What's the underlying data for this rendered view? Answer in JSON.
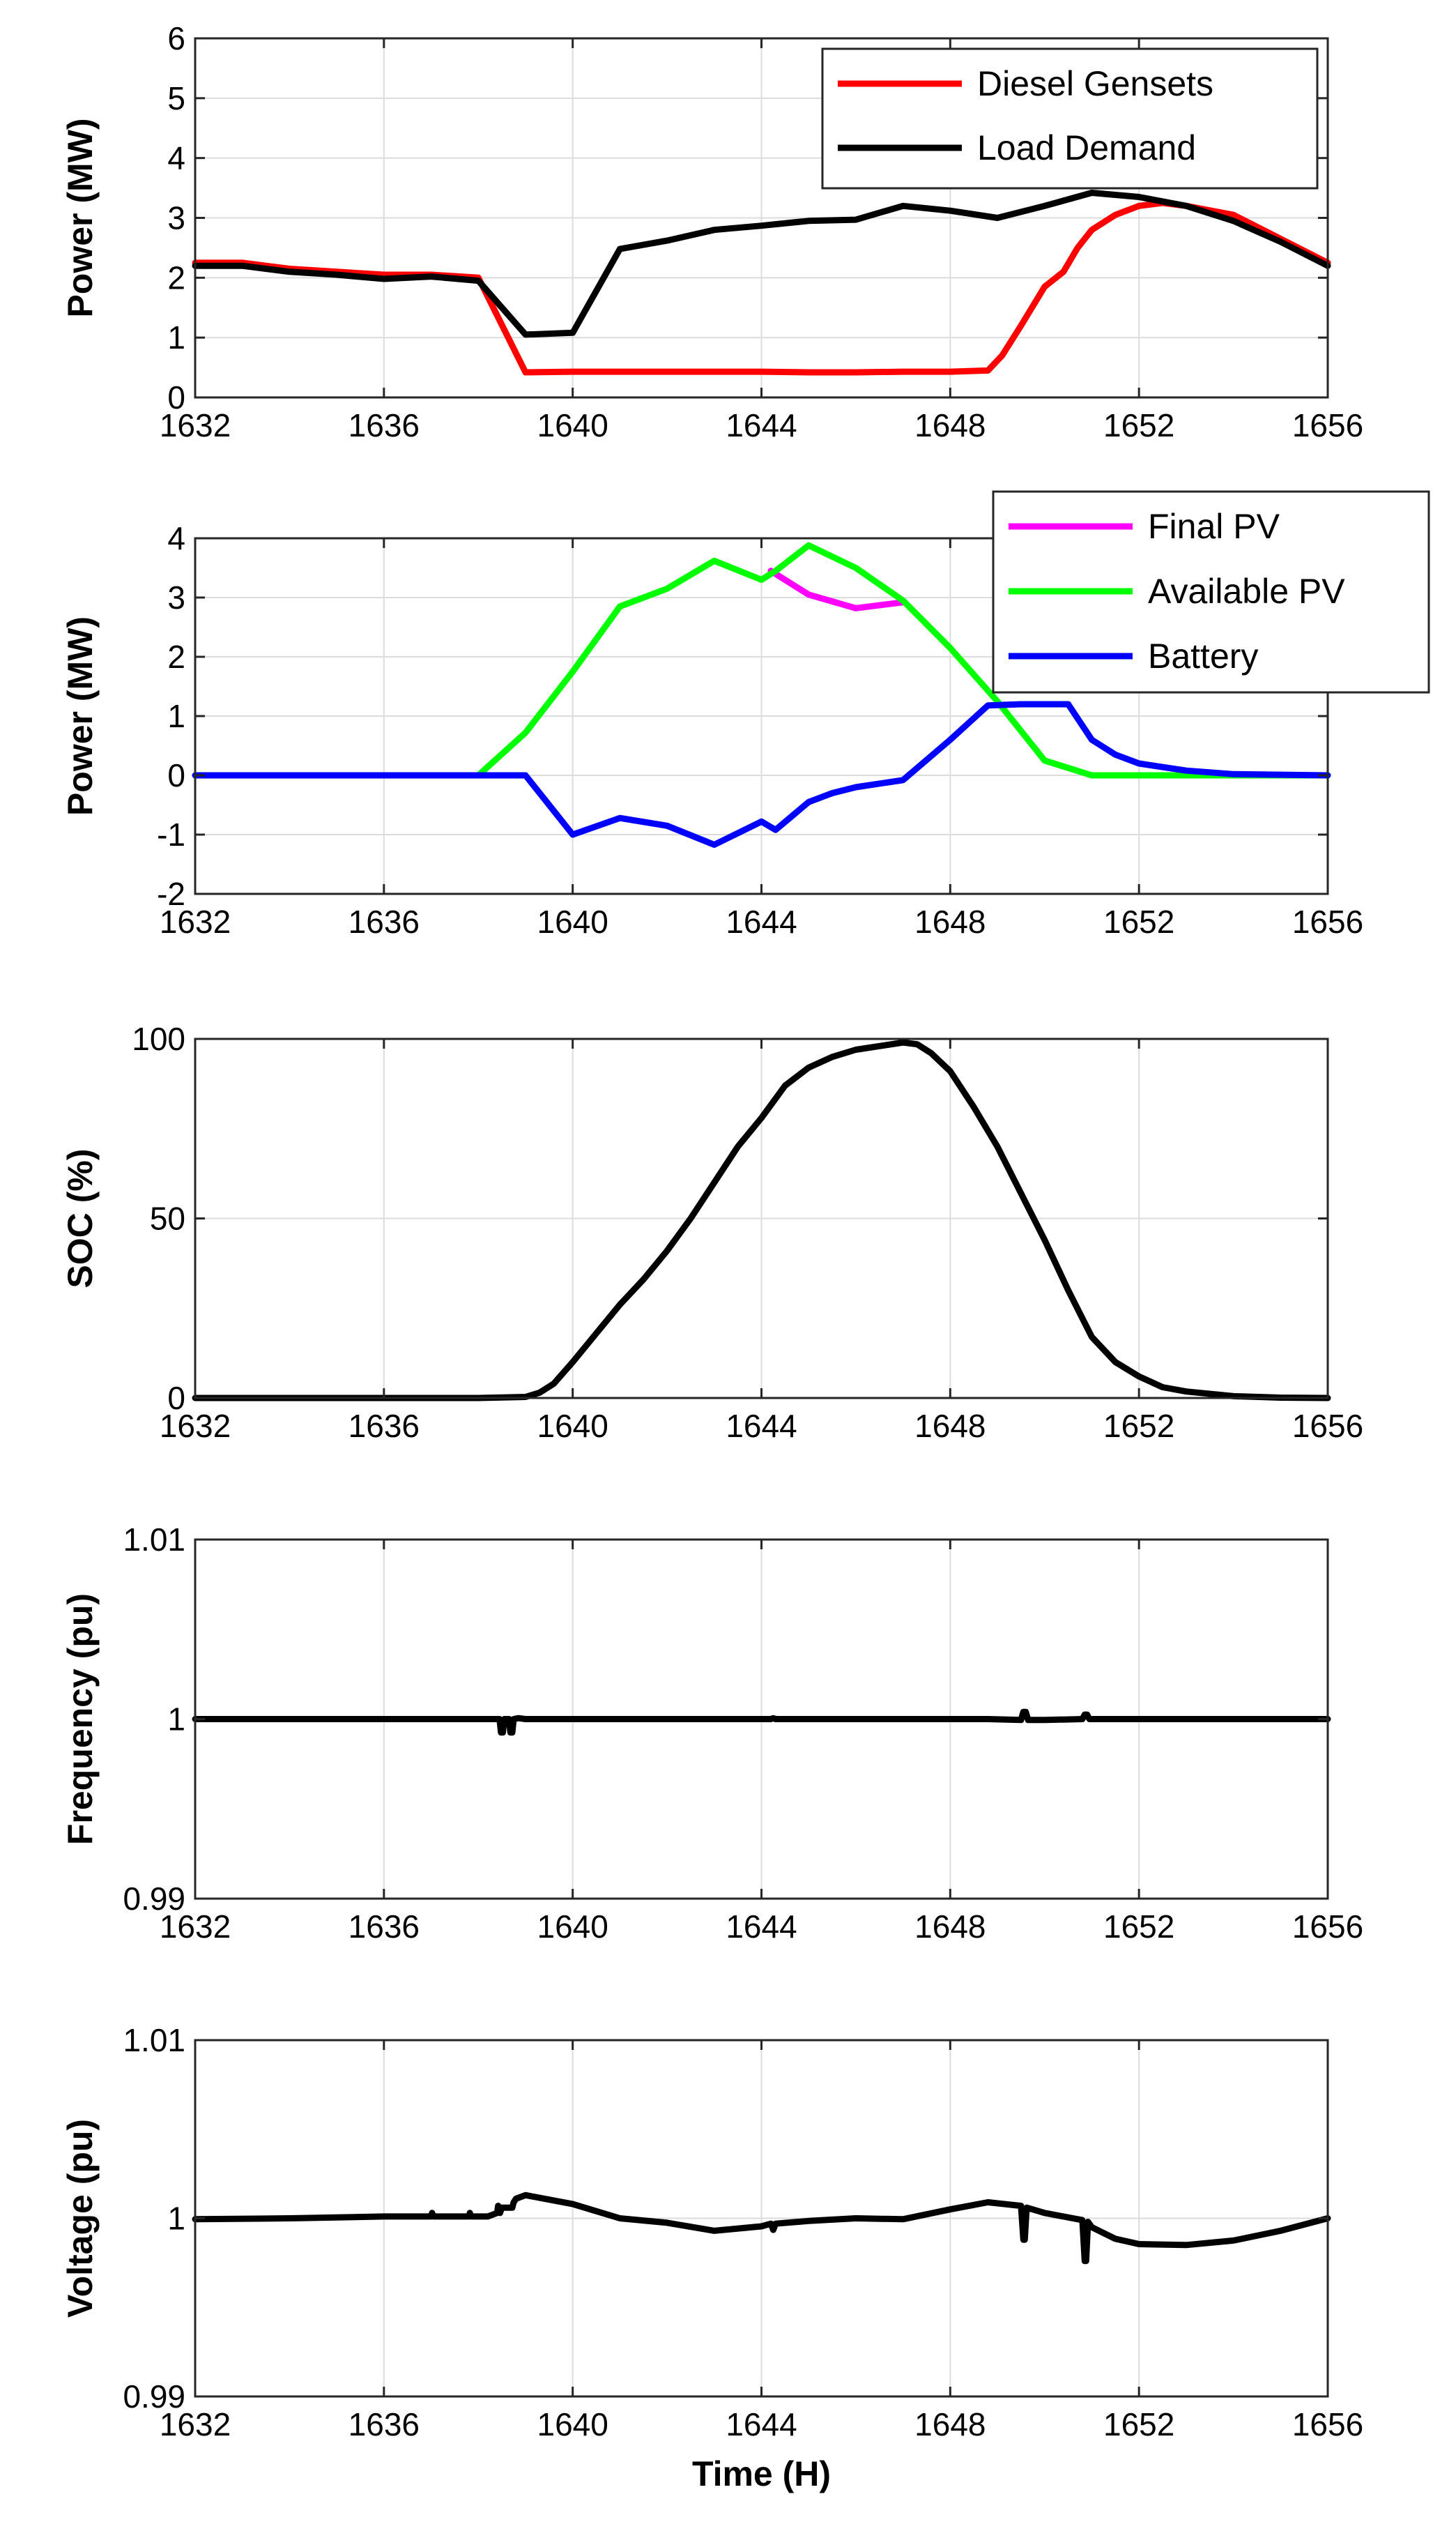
{
  "chart_data": [
    {
      "type": "line",
      "ylabel": "Power (MW)",
      "xlabel": "",
      "xlim": [
        1632,
        1656
      ],
      "ylim": [
        0,
        6
      ],
      "xticks": [
        1632,
        1636,
        1640,
        1644,
        1648,
        1652,
        1656
      ],
      "yticks": [
        0,
        1,
        2,
        3,
        4,
        5,
        6
      ],
      "legend_position": "top-right",
      "series": [
        {
          "name": "Diesel Gensets",
          "color": "#ff0000",
          "x": [
            1632,
            1633,
            1634,
            1635,
            1636,
            1637,
            1638,
            1639,
            1640,
            1641,
            1642,
            1643,
            1644,
            1645,
            1646,
            1647,
            1648,
            1648.8,
            1649.1,
            1649.5,
            1650,
            1650.4,
            1650.7,
            1651,
            1651.5,
            1652,
            1652.5,
            1653,
            1654,
            1655,
            1656
          ],
          "y": [
            2.25,
            2.25,
            2.15,
            2.1,
            2.05,
            2.05,
            2.0,
            0.42,
            0.43,
            0.43,
            0.43,
            0.43,
            0.43,
            0.42,
            0.42,
            0.43,
            0.43,
            0.45,
            0.7,
            1.2,
            1.85,
            2.1,
            2.5,
            2.8,
            3.05,
            3.2,
            3.25,
            3.2,
            3.05,
            2.65,
            2.25
          ]
        },
        {
          "name": "Load Demand",
          "color": "#000000",
          "x": [
            1632,
            1633,
            1634,
            1635,
            1636,
            1637,
            1638,
            1639,
            1640,
            1641,
            1642,
            1643,
            1644,
            1645,
            1646,
            1647,
            1648,
            1649,
            1650,
            1651,
            1652,
            1653,
            1654,
            1655,
            1656
          ],
          "y": [
            2.2,
            2.2,
            2.1,
            2.05,
            1.98,
            2.02,
            1.95,
            1.05,
            1.08,
            2.48,
            2.62,
            2.8,
            2.87,
            2.95,
            2.97,
            3.2,
            3.12,
            3.0,
            3.2,
            3.42,
            3.35,
            3.2,
            2.95,
            2.6,
            2.2
          ]
        }
      ]
    },
    {
      "type": "line",
      "ylabel": "Power (MW)",
      "xlabel": "",
      "xlim": [
        1632,
        1656
      ],
      "ylim": [
        -2,
        4
      ],
      "xticks": [
        1632,
        1636,
        1640,
        1644,
        1648,
        1652,
        1656
      ],
      "yticks": [
        -2,
        -1,
        0,
        1,
        2,
        3,
        4
      ],
      "legend_position": "top-right (outside)",
      "series": [
        {
          "name": "Final PV",
          "color": "#ff00ff",
          "x": [
            1644.2,
            1645,
            1646,
            1647
          ],
          "y": [
            3.45,
            3.05,
            2.82,
            2.92
          ]
        },
        {
          "name": "Available PV",
          "color": "#00ff00",
          "x": [
            1632,
            1636,
            1638,
            1639,
            1640,
            1641,
            1642,
            1643,
            1644,
            1644.3,
            1645,
            1646,
            1647,
            1648,
            1649,
            1650,
            1651,
            1652,
            1656
          ],
          "y": [
            0,
            0,
            0,
            0.72,
            1.75,
            2.85,
            3.15,
            3.62,
            3.3,
            3.45,
            3.88,
            3.5,
            2.95,
            2.15,
            1.25,
            0.25,
            0.0,
            0.0,
            0.0
          ]
        },
        {
          "name": "Battery",
          "color": "#0000ff",
          "x": [
            1632,
            1636,
            1639,
            1640,
            1641,
            1642,
            1643,
            1644,
            1644.3,
            1645,
            1645.5,
            1646,
            1647,
            1648,
            1648.8,
            1649.5,
            1650.5,
            1651,
            1651.5,
            1652,
            1653,
            1654,
            1656
          ],
          "y": [
            0,
            0,
            0,
            -1.0,
            -0.72,
            -0.85,
            -1.17,
            -0.78,
            -0.92,
            -0.45,
            -0.3,
            -0.2,
            -0.08,
            0.6,
            1.18,
            1.2,
            1.2,
            0.6,
            0.35,
            0.2,
            0.08,
            0.02,
            0.0
          ]
        }
      ]
    },
    {
      "type": "line",
      "ylabel": "SOC (%)",
      "xlabel": "",
      "xlim": [
        1632,
        1656
      ],
      "ylim": [
        0,
        100
      ],
      "xticks": [
        1632,
        1636,
        1640,
        1644,
        1648,
        1652,
        1656
      ],
      "yticks": [
        0,
        50,
        100
      ],
      "series": [
        {
          "name": "SOC",
          "color": "#000000",
          "x": [
            1632,
            1638,
            1639,
            1639.3,
            1639.6,
            1640,
            1640.5,
            1641,
            1641.5,
            1642,
            1642.5,
            1643,
            1643.5,
            1644,
            1644.5,
            1645,
            1645.5,
            1646,
            1646.5,
            1647,
            1647.3,
            1647.6,
            1648,
            1648.5,
            1649,
            1649.5,
            1650,
            1650.5,
            1651,
            1651.5,
            1652,
            1652.5,
            1653,
            1654,
            1655,
            1656
          ],
          "y": [
            0,
            0,
            0.3,
            1.5,
            4,
            10,
            18,
            26,
            33,
            41,
            50,
            60,
            70,
            78,
            87,
            92,
            95,
            97,
            98,
            99,
            98.5,
            96,
            91,
            81,
            70,
            57,
            44,
            30,
            17,
            10,
            6,
            3,
            1.8,
            0.5,
            0.1,
            0
          ]
        }
      ]
    },
    {
      "type": "line",
      "ylabel": "Frequency (pu)",
      "xlabel": "",
      "xlim": [
        1632,
        1656
      ],
      "ylim": [
        0.99,
        1.01
      ],
      "xticks": [
        1632,
        1636,
        1640,
        1644,
        1648,
        1652,
        1656
      ],
      "yticks": [
        0.99,
        1,
        1.01
      ],
      "ytick_labels": [
        "0.99",
        "1",
        "1.01"
      ],
      "series": [
        {
          "name": "Frequency",
          "color": "#000000",
          "x": [
            1632,
            1638.45,
            1638.48,
            1638.52,
            1638.55,
            1638.65,
            1638.68,
            1638.72,
            1638.75,
            1638.85,
            1639,
            1644.2,
            1644.25,
            1644.3,
            1648.8,
            1649.5,
            1649.55,
            1649.6,
            1649.65,
            1649.7,
            1650,
            1650.8,
            1650.85,
            1650.9,
            1650.95,
            1651,
            1656
          ],
          "y": [
            1.0,
            1.0,
            0.99925,
            0.99925,
            1.0,
            1.0,
            0.99925,
            0.99925,
            1.0,
            1.00005,
            1.0,
            1.0,
            1.00005,
            1.0,
            1.0,
            0.99995,
            1.0004,
            1.0004,
            0.99995,
            0.99995,
            0.99995,
            1.0,
            1.00025,
            1.00025,
            1.0,
            1.0,
            1.0
          ]
        }
      ]
    },
    {
      "type": "line",
      "ylabel": "Voltage (pu)",
      "xlabel": "Time (H)",
      "xlim": [
        1632,
        1656
      ],
      "ylim": [
        0.99,
        1.01
      ],
      "xticks": [
        1632,
        1636,
        1640,
        1644,
        1648,
        1652,
        1656
      ],
      "yticks": [
        0.99,
        1,
        1.01
      ],
      "ytick_labels": [
        "0.99",
        "1",
        "1.01"
      ],
      "series": [
        {
          "name": "Voltage",
          "color": "#000000",
          "x": [
            1632,
            1634,
            1636,
            1637,
            1637.02,
            1637.05,
            1637.1,
            1637.8,
            1637.82,
            1637.85,
            1638.2,
            1638.4,
            1638.42,
            1638.46,
            1638.5,
            1638.7,
            1638.72,
            1638.75,
            1638.8,
            1639,
            1640,
            1641,
            1642,
            1643,
            1644,
            1644.2,
            1644.25,
            1644.3,
            1645,
            1646,
            1647,
            1648,
            1648.8,
            1649.5,
            1649.55,
            1649.58,
            1649.62,
            1650,
            1650.8,
            1650.85,
            1650.88,
            1650.92,
            1651,
            1651.5,
            1652,
            1653,
            1654,
            1655,
            1656
          ],
          "y": [
            0.99995,
            1.0,
            1.0001,
            1.0001,
            1.0003,
            1.0001,
            1.0001,
            1.0001,
            1.0003,
            1.0001,
            1.0001,
            1.0003,
            1.0007,
            1.0003,
            1.0006,
            1.0006,
            1.0006,
            1.0009,
            1.0011,
            1.0013,
            1.0008,
            1.0,
            0.99975,
            0.9993,
            0.99955,
            0.9997,
            0.99935,
            0.9997,
            0.99985,
            1.0,
            0.99995,
            1.0005,
            1.0009,
            1.0007,
            0.9988,
            0.9988,
            1.0006,
            1.0003,
            0.9999,
            0.9976,
            0.9976,
            0.9998,
            0.9995,
            0.99885,
            0.99855,
            0.9985,
            0.99875,
            0.9993,
            1.0
          ]
        }
      ]
    }
  ]
}
